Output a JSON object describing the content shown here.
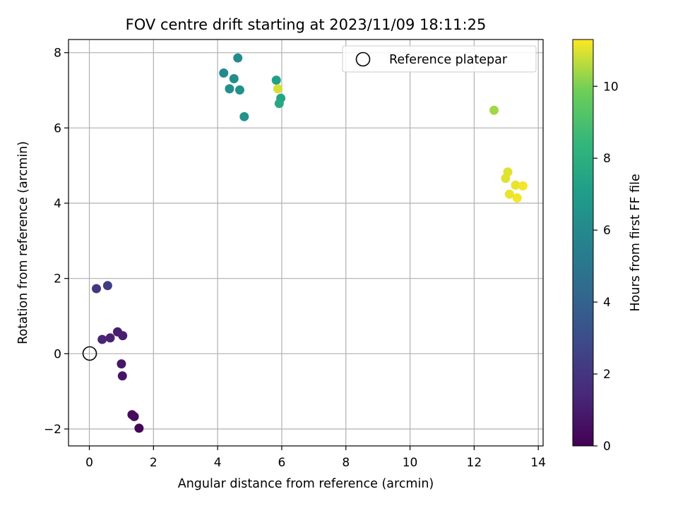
{
  "chart_data": {
    "type": "scatter",
    "title": "FOV centre drift starting at 2023/11/09 18:11:25",
    "xlabel": "Angular distance from reference (arcmin)",
    "ylabel": "Rotation from reference (arcmin)",
    "xlim": [
      -0.65,
      14.15
    ],
    "ylim": [
      -2.45,
      8.35
    ],
    "xticks": [
      0,
      2,
      4,
      6,
      8,
      10,
      12,
      14
    ],
    "yticks": [
      -2,
      0,
      2,
      4,
      6,
      8
    ],
    "xtick_labels": [
      "0",
      "2",
      "4",
      "6",
      "8",
      "10",
      "12",
      "14"
    ],
    "ytick_labels": [
      "−2",
      "0",
      "2",
      "4",
      "6",
      "8"
    ],
    "grid": true,
    "colormap": "viridis",
    "colorbar": {
      "label": "Hours from first FF file",
      "range": [
        0,
        11.3
      ],
      "ticks": [
        0,
        2,
        4,
        6,
        8,
        10
      ],
      "tick_labels": [
        "0",
        "2",
        "4",
        "6",
        "8",
        "10"
      ]
    },
    "legend": {
      "position": "top-right",
      "entries": [
        {
          "label": "Reference platepar",
          "marker": "open-circle"
        }
      ]
    },
    "reference_point": {
      "x": 0,
      "y": 0
    },
    "points": [
      {
        "x": 1.55,
        "y": -1.98,
        "hours": 0.1
      },
      {
        "x": 1.4,
        "y": -1.67,
        "hours": 0.3
      },
      {
        "x": 1.33,
        "y": -1.62,
        "hours": 0.4
      },
      {
        "x": 1.03,
        "y": -0.59,
        "hours": 0.7
      },
      {
        "x": 1.0,
        "y": -0.27,
        "hours": 0.8
      },
      {
        "x": 0.88,
        "y": 0.58,
        "hours": 1.0
      },
      {
        "x": 1.04,
        "y": 0.48,
        "hours": 1.1
      },
      {
        "x": 0.65,
        "y": 0.42,
        "hours": 1.2
      },
      {
        "x": 0.4,
        "y": 0.38,
        "hours": 1.3
      },
      {
        "x": 0.22,
        "y": 1.73,
        "hours": 2.0
      },
      {
        "x": 0.57,
        "y": 1.81,
        "hours": 2.3
      },
      {
        "x": 4.19,
        "y": 7.46,
        "hours": 6.0
      },
      {
        "x": 4.63,
        "y": 7.86,
        "hours": 6.1
      },
      {
        "x": 4.51,
        "y": 7.31,
        "hours": 6.2
      },
      {
        "x": 4.37,
        "y": 7.04,
        "hours": 6.3
      },
      {
        "x": 4.69,
        "y": 7.01,
        "hours": 6.4
      },
      {
        "x": 4.83,
        "y": 6.3,
        "hours": 6.5
      },
      {
        "x": 5.83,
        "y": 7.27,
        "hours": 7.2
      },
      {
        "x": 5.97,
        "y": 6.79,
        "hours": 7.4
      },
      {
        "x": 5.92,
        "y": 6.65,
        "hours": 7.6
      },
      {
        "x": 5.88,
        "y": 7.04,
        "hours": 10.9
      },
      {
        "x": 12.62,
        "y": 6.47,
        "hours": 10.4
      },
      {
        "x": 13.05,
        "y": 4.83,
        "hours": 11.0
      },
      {
        "x": 12.98,
        "y": 4.66,
        "hours": 11.0
      },
      {
        "x": 13.29,
        "y": 4.48,
        "hours": 11.1
      },
      {
        "x": 13.52,
        "y": 4.46,
        "hours": 11.2
      },
      {
        "x": 13.1,
        "y": 4.24,
        "hours": 11.1
      },
      {
        "x": 13.34,
        "y": 4.14,
        "hours": 11.2
      }
    ]
  }
}
